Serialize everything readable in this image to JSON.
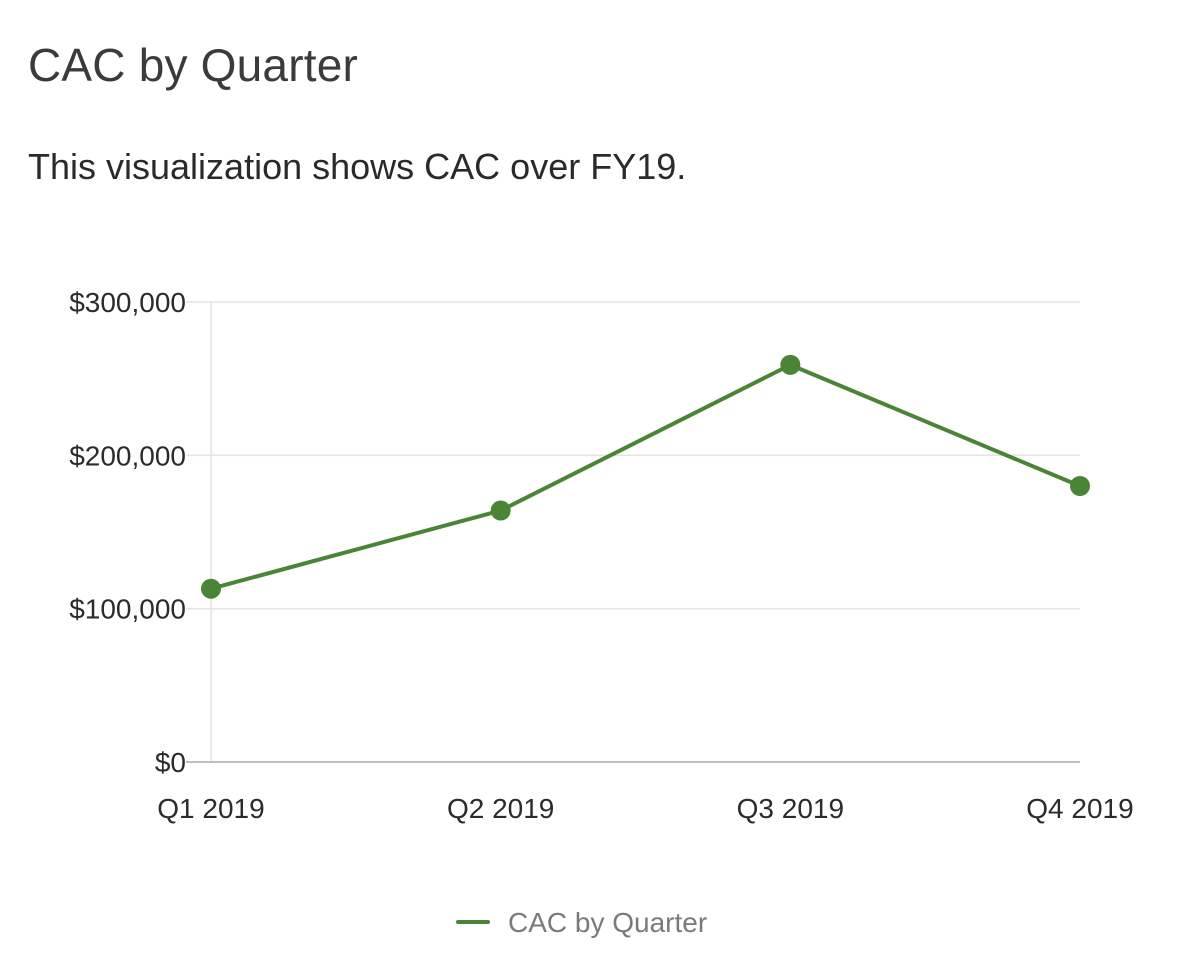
{
  "page": {
    "title": "CAC by Quarter",
    "subtitle": "This visualization shows CAC over FY19."
  },
  "chart_data": {
    "type": "line",
    "title": "CAC by Quarter",
    "categories": [
      "Q1 2019",
      "Q2 2019",
      "Q3 2019",
      "Q4 2019"
    ],
    "series": [
      {
        "name": "CAC by Quarter",
        "values": [
          113000,
          164000,
          259000,
          180000
        ],
        "color": "#4a8436"
      }
    ],
    "y_ticks": [
      {
        "value": 0,
        "label": "$0"
      },
      {
        "value": 100000,
        "label": "$100,000"
      },
      {
        "value": 200000,
        "label": "$200,000"
      },
      {
        "value": 300000,
        "label": "$300,000"
      }
    ],
    "ylim": [
      0,
      300000
    ],
    "xlabel": "",
    "ylabel": "",
    "grid": true,
    "legend_position": "bottom-center",
    "colors": {
      "gridline": "#e3e3e3",
      "baseline": "#bdbdbd"
    }
  }
}
